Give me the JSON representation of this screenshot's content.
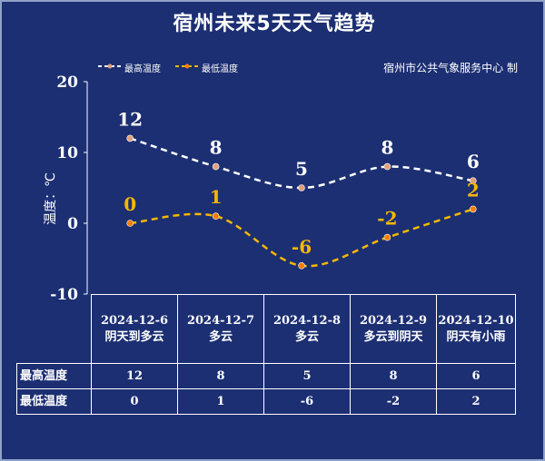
{
  "title": "宿州未来5天天气趋势",
  "source": "宿州市公共气象服务中心  制",
  "ylabel": "温度：℃",
  "colors": {
    "background": "#1c2f73",
    "high": "#ffffff",
    "low": "#f5b800",
    "high_marker": "#e0a07a",
    "low_marker": "#f57d00"
  },
  "chart_data": {
    "type": "line",
    "categories": [
      "2024-12-6",
      "2024-12-7",
      "2024-12-8",
      "2024-12-9",
      "2024-12-10"
    ],
    "series": [
      {
        "name": "最高温度",
        "values": [
          12,
          8,
          5,
          8,
          6
        ],
        "labels": [
          "12",
          "8",
          "5",
          "8",
          "6"
        ]
      },
      {
        "name": "最低温度",
        "values": [
          0,
          1,
          -6,
          -2,
          2
        ],
        "labels": [
          "0",
          "1",
          "-6",
          "-2",
          "2"
        ]
      }
    ],
    "ylim": [
      -10,
      20
    ],
    "yticks": [
      "20",
      "10",
      "0",
      "-10"
    ],
    "ytick_values": [
      20,
      10,
      0,
      -10
    ],
    "legend": "top-left",
    "grid": false
  },
  "table": {
    "row_labels": [
      "最高温度",
      "最低温度"
    ],
    "days": [
      {
        "date": "2024-12-6",
        "weather": "阴天到多云",
        "high": "12",
        "low": "0"
      },
      {
        "date": "2024-12-7",
        "weather": "多云",
        "high": "8",
        "low": "1"
      },
      {
        "date": "2024-12-8",
        "weather": "多云",
        "high": "5",
        "low": "-6"
      },
      {
        "date": "2024-12-9",
        "weather": "多云到阴天",
        "high": "8",
        "low": "-2"
      },
      {
        "date": "2024-12-10",
        "weather": "阴天有小雨",
        "high": "6",
        "low": "2"
      }
    ]
  }
}
